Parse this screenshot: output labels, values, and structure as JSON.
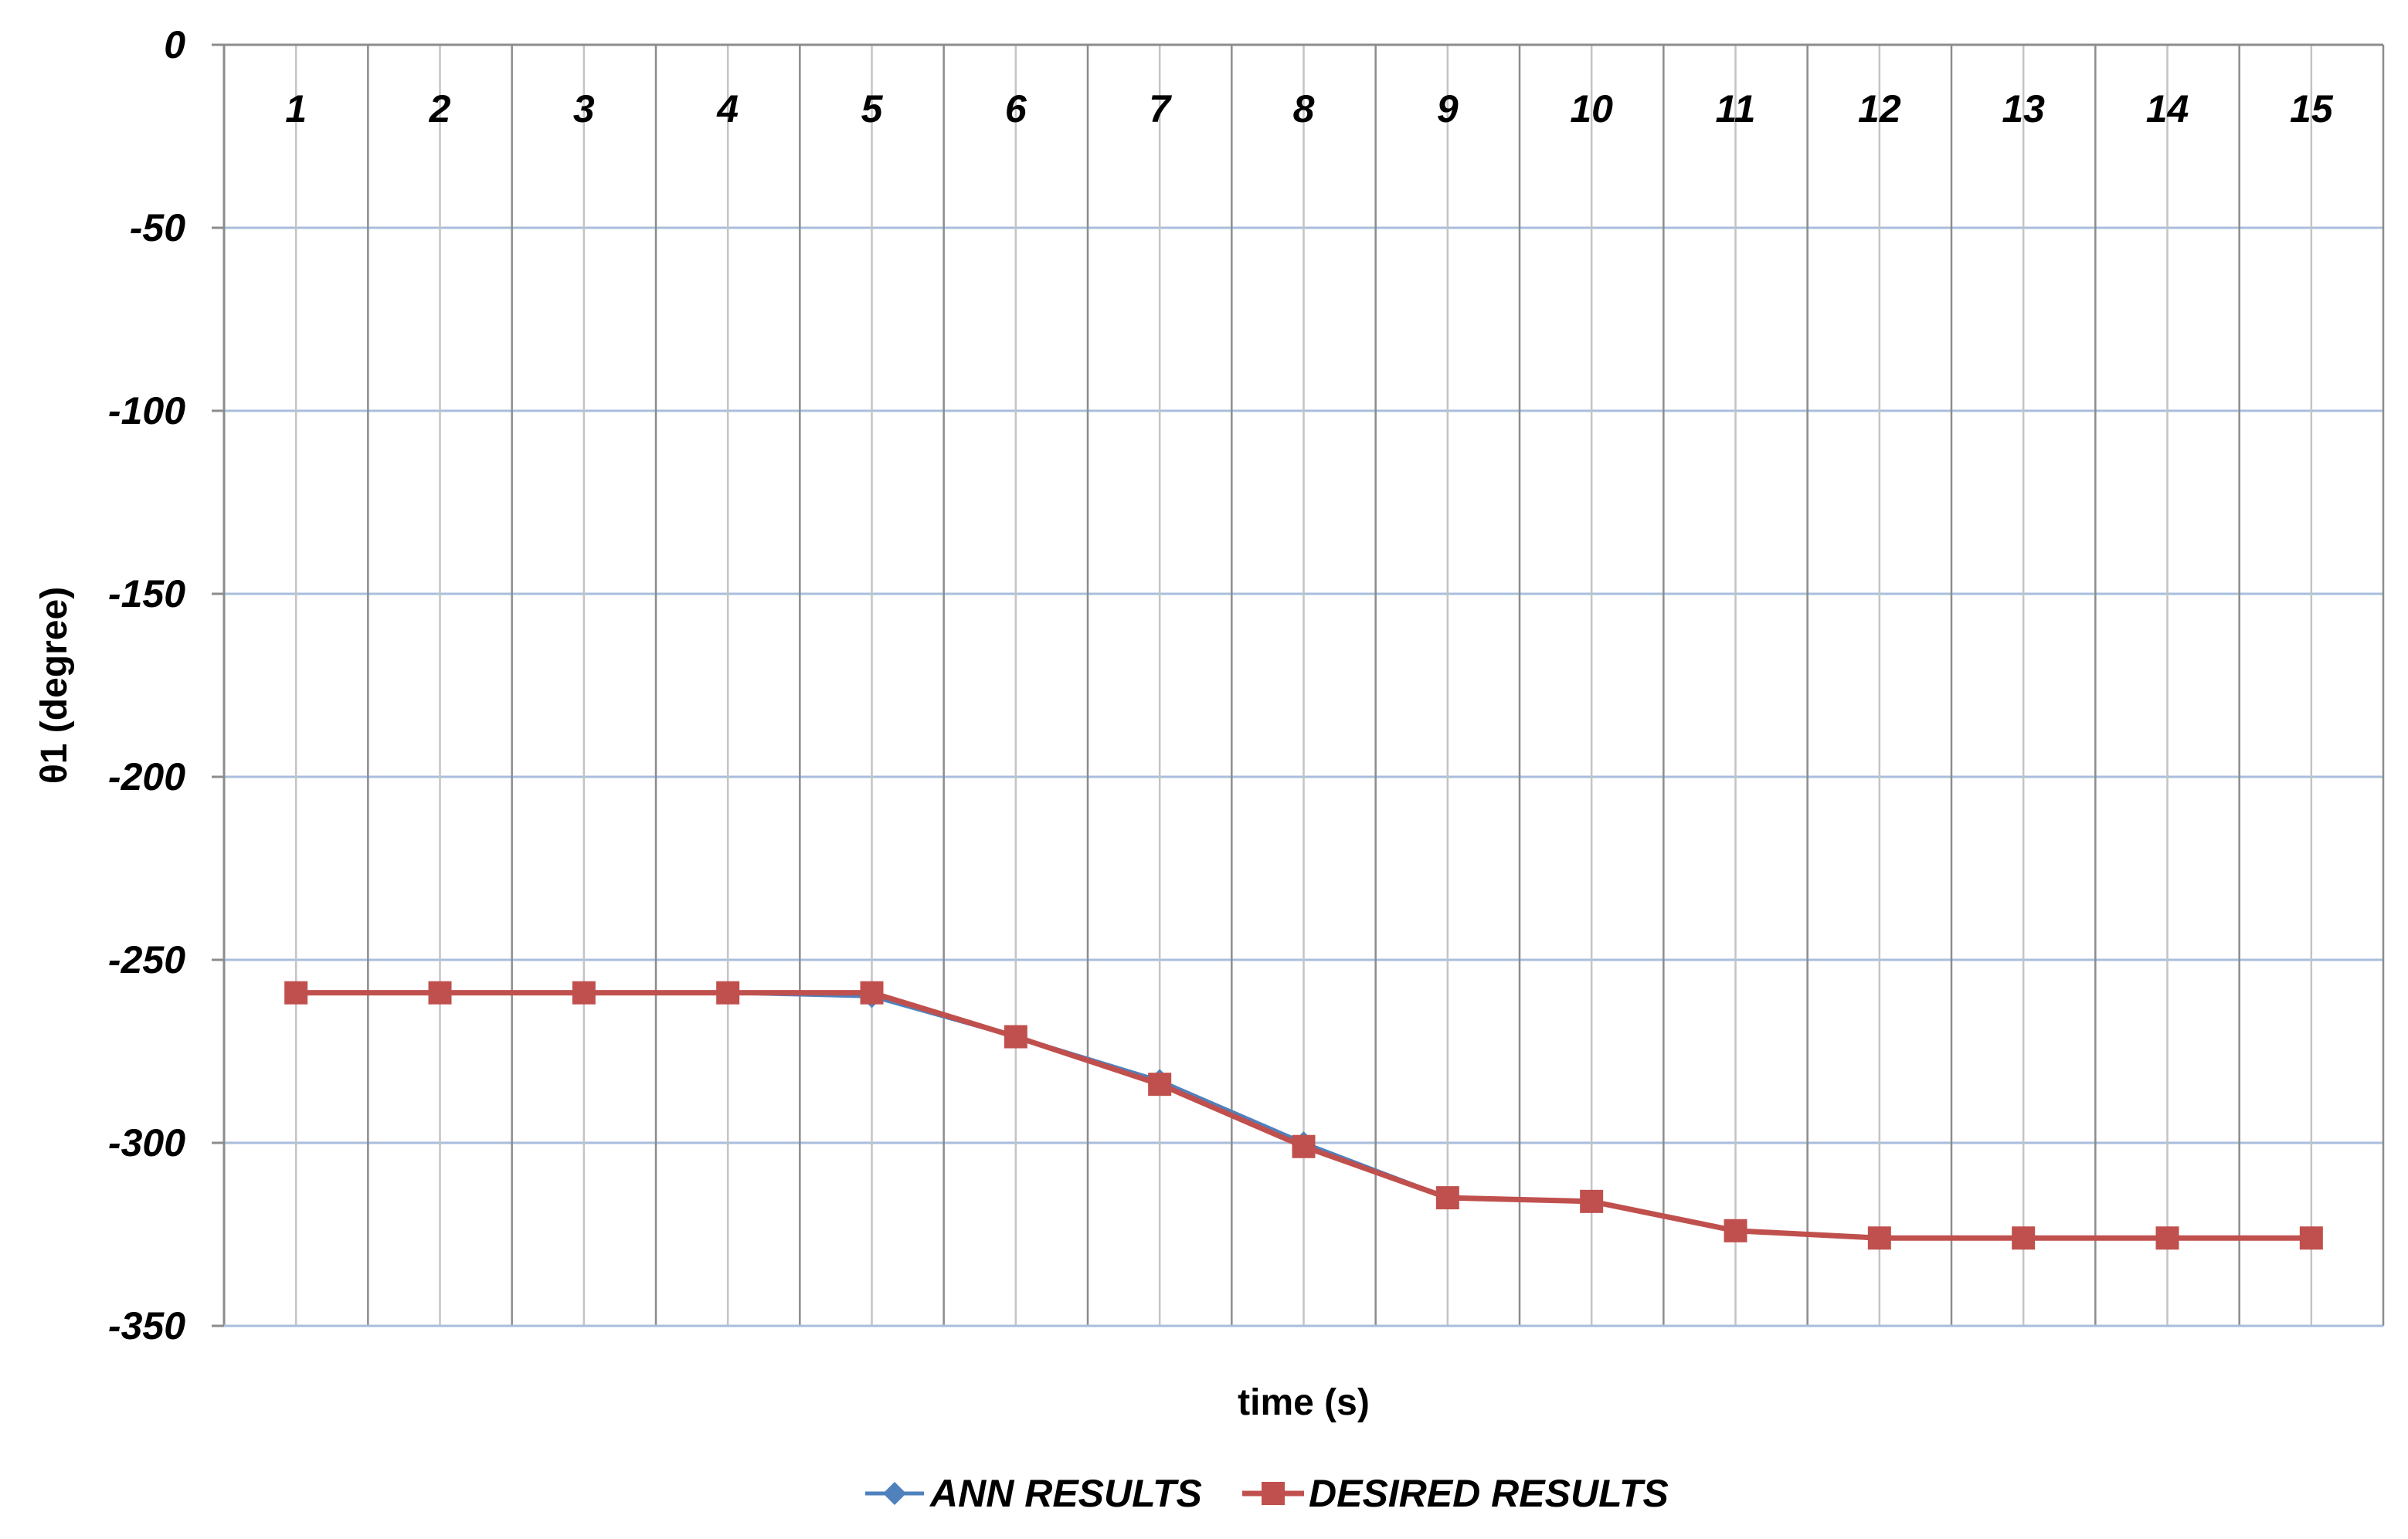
{
  "chart_data": {
    "type": "line",
    "title": "",
    "xlabel": "time (s)",
    "ylabel": "θ1 (degree)",
    "ylim": [
      -350,
      0
    ],
    "yticks": [
      "0",
      "-50",
      "-100",
      "-150",
      "-200",
      "-250",
      "-300",
      "-350"
    ],
    "ytick_values": [
      0,
      -50,
      -100,
      -150,
      -200,
      -250,
      -300,
      -350
    ],
    "x": [
      1,
      2,
      3,
      4,
      5,
      6,
      7,
      8,
      9,
      10,
      11,
      12,
      13,
      14,
      15
    ],
    "xtick_labels": [
      "1",
      "2",
      "3",
      "4",
      "5",
      "6",
      "7",
      "8",
      "9",
      "10",
      "11",
      "12",
      "13",
      "14",
      "15"
    ],
    "x_axis_position": "top",
    "grid": "on",
    "legend_position": "bottom-center",
    "series": [
      {
        "name": "ANN RESULTS",
        "color": "#4F81BD",
        "marker": "diamond",
        "values": [
          -259,
          -259,
          -259,
          -259,
          -260,
          -271,
          -283,
          -300,
          -315,
          -316,
          -324,
          -326,
          -326,
          -326,
          -326
        ]
      },
      {
        "name": "DESIRED RESULTS",
        "color": "#C0504D",
        "marker": "square",
        "values": [
          -259,
          -259,
          -259,
          -259,
          -259,
          -271,
          -284,
          -301,
          -315,
          -316,
          -324,
          -326,
          -326,
          -326,
          -326
        ]
      }
    ],
    "colors": {
      "horizontal_grid": "#A9BEDD",
      "vertical_grid": "#8C8C8C",
      "axis": "#8C8C8C"
    }
  }
}
